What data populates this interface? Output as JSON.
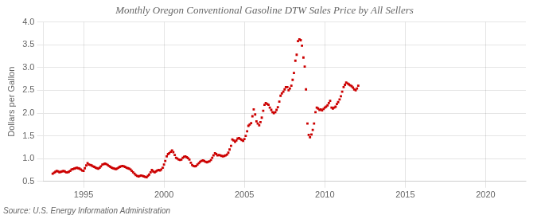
{
  "chart_data": {
    "type": "scatter",
    "title": "Monthly Oregon Conventional Gasoline DTW Sales Price by All Sellers",
    "ylabel": "Dollars per Gallon",
    "annotations": [
      "Source: U.S. Energy Information Administration"
    ],
    "color": "#cc0000",
    "marker": "square",
    "grid": true,
    "xlim": [
      1992.5,
      2022.5
    ],
    "ylim": [
      0.5,
      4.0
    ],
    "xticks": [
      1995,
      2000,
      2005,
      2010,
      2015,
      2020
    ],
    "yticks": [
      0.5,
      {
        "value": 1.0,
        "label": "1.0"
      },
      1.5,
      {
        "value": 2.0,
        "label": "2.0"
      },
      2.5,
      {
        "value": 3.0,
        "label": "3.0"
      },
      3.5,
      {
        "value": 4.0,
        "label": "4.0"
      }
    ],
    "x": [
      1993.08,
      1993.17,
      1993.25,
      1993.33,
      1993.42,
      1993.5,
      1993.58,
      1993.67,
      1993.75,
      1993.83,
      1993.92,
      1994.0,
      1994.08,
      1994.17,
      1994.25,
      1994.33,
      1994.42,
      1994.5,
      1994.58,
      1994.67,
      1994.75,
      1994.83,
      1994.92,
      1995.0,
      1995.08,
      1995.17,
      1995.25,
      1995.33,
      1995.42,
      1995.5,
      1995.58,
      1995.67,
      1995.75,
      1995.83,
      1995.92,
      1996.0,
      1996.08,
      1996.17,
      1996.25,
      1996.33,
      1996.42,
      1996.5,
      1996.58,
      1996.67,
      1996.75,
      1996.83,
      1996.92,
      1997.0,
      1997.08,
      1997.17,
      1997.25,
      1997.33,
      1997.42,
      1997.5,
      1997.58,
      1997.67,
      1997.75,
      1997.83,
      1997.92,
      1998.0,
      1998.08,
      1998.17,
      1998.25,
      1998.33,
      1998.42,
      1998.5,
      1998.58,
      1998.67,
      1998.75,
      1998.83,
      1998.92,
      1999.0,
      1999.08,
      1999.17,
      1999.25,
      1999.33,
      1999.42,
      1999.5,
      1999.58,
      1999.67,
      1999.75,
      1999.83,
      1999.92,
      2000.0,
      2000.08,
      2000.17,
      2000.25,
      2000.33,
      2000.42,
      2000.5,
      2000.58,
      2000.67,
      2000.75,
      2000.83,
      2000.92,
      2001.0,
      2001.08,
      2001.17,
      2001.25,
      2001.33,
      2001.42,
      2001.5,
      2001.58,
      2001.67,
      2001.75,
      2001.83,
      2001.92,
      2002.0,
      2002.08,
      2002.17,
      2002.25,
      2002.33,
      2002.42,
      2002.5,
      2002.58,
      2002.67,
      2002.75,
      2002.83,
      2002.92,
      2003.0,
      2003.08,
      2003.17,
      2003.25,
      2003.33,
      2003.42,
      2003.5,
      2003.58,
      2003.67,
      2003.75,
      2003.83,
      2003.92,
      2004.0,
      2004.08,
      2004.17,
      2004.25,
      2004.33,
      2004.42,
      2004.5,
      2004.58,
      2004.67,
      2004.75,
      2004.83,
      2004.92,
      2005.0,
      2005.08,
      2005.17,
      2005.25,
      2005.33,
      2005.42,
      2005.5,
      2005.58,
      2005.67,
      2005.75,
      2005.83,
      2005.92,
      2006.0,
      2006.08,
      2006.17,
      2006.25,
      2006.33,
      2006.42,
      2006.5,
      2006.58,
      2006.67,
      2006.75,
      2006.83,
      2006.92,
      2007.0,
      2007.08,
      2007.17,
      2007.25,
      2007.33,
      2007.42,
      2007.5,
      2007.58,
      2007.67,
      2007.75,
      2007.83,
      2007.92,
      2008.0,
      2008.08,
      2008.17,
      2008.25,
      2008.33,
      2008.42,
      2008.5,
      2008.58,
      2008.67,
      2008.75,
      2008.83,
      2008.92,
      2009.0,
      2009.08,
      2009.17,
      2009.25,
      2009.33,
      2009.42,
      2009.5,
      2009.58,
      2009.67,
      2009.75,
      2009.83,
      2009.92,
      2010.0,
      2010.08,
      2010.17,
      2010.25,
      2010.33,
      2010.42,
      2010.5,
      2010.58,
      2010.67,
      2010.75,
      2010.83,
      2010.92,
      2011.0,
      2011.08,
      2011.17,
      2011.25,
      2011.33,
      2011.42,
      2011.5,
      2011.58,
      2011.67,
      2011.75,
      2011.83,
      2011.92,
      2012.0,
      2012.08
    ],
    "values": [
      0.67,
      0.69,
      0.71,
      0.73,
      0.72,
      0.7,
      0.71,
      0.72,
      0.73,
      0.72,
      0.7,
      0.7,
      0.71,
      0.73,
      0.76,
      0.77,
      0.78,
      0.79,
      0.8,
      0.79,
      0.78,
      0.76,
      0.74,
      0.73,
      0.79,
      0.85,
      0.9,
      0.87,
      0.86,
      0.85,
      0.83,
      0.82,
      0.8,
      0.79,
      0.78,
      0.8,
      0.83,
      0.87,
      0.88,
      0.89,
      0.88,
      0.86,
      0.84,
      0.82,
      0.8,
      0.79,
      0.78,
      0.77,
      0.78,
      0.8,
      0.82,
      0.83,
      0.84,
      0.83,
      0.82,
      0.8,
      0.79,
      0.78,
      0.76,
      0.73,
      0.7,
      0.67,
      0.64,
      0.62,
      0.61,
      0.62,
      0.63,
      0.62,
      0.61,
      0.6,
      0.59,
      0.62,
      0.65,
      0.7,
      0.75,
      0.72,
      0.7,
      0.72,
      0.74,
      0.75,
      0.74,
      0.76,
      0.8,
      0.87,
      0.95,
      1.05,
      1.1,
      1.12,
      1.15,
      1.18,
      1.14,
      1.08,
      1.02,
      1.0,
      0.98,
      0.97,
      0.98,
      1.02,
      1.04,
      1.05,
      1.03,
      1.01,
      0.98,
      0.91,
      0.86,
      0.84,
      0.83,
      0.84,
      0.87,
      0.9,
      0.93,
      0.95,
      0.96,
      0.95,
      0.93,
      0.92,
      0.93,
      0.94,
      0.97,
      1.02,
      1.07,
      1.12,
      1.1,
      1.07,
      1.08,
      1.07,
      1.06,
      1.05,
      1.06,
      1.07,
      1.09,
      1.13,
      1.2,
      1.28,
      1.42,
      1.4,
      1.37,
      1.4,
      1.44,
      1.45,
      1.43,
      1.41,
      1.39,
      1.43,
      1.5,
      1.6,
      1.72,
      1.75,
      1.78,
      1.93,
      2.08,
      1.97,
      1.82,
      1.77,
      1.73,
      1.8,
      1.9,
      2.05,
      2.18,
      2.22,
      2.2,
      2.18,
      2.12,
      2.07,
      2.02,
      2.0,
      2.02,
      2.07,
      2.13,
      2.25,
      2.38,
      2.43,
      2.47,
      2.52,
      2.57,
      2.57,
      2.5,
      2.54,
      2.6,
      2.73,
      2.88,
      3.15,
      3.28,
      3.58,
      3.62,
      3.6,
      3.48,
      3.22,
      3.02,
      2.52,
      1.77,
      1.52,
      1.47,
      1.53,
      1.63,
      1.77,
      2.02,
      2.12,
      2.1,
      2.07,
      2.08,
      2.06,
      2.09,
      2.12,
      2.14,
      2.17,
      2.22,
      2.27,
      2.12,
      2.1,
      2.12,
      2.14,
      2.2,
      2.24,
      2.3,
      2.37,
      2.47,
      2.57,
      2.62,
      2.67,
      2.65,
      2.63,
      2.61,
      2.59,
      2.56,
      2.52,
      2.5,
      2.54,
      2.6
    ]
  }
}
